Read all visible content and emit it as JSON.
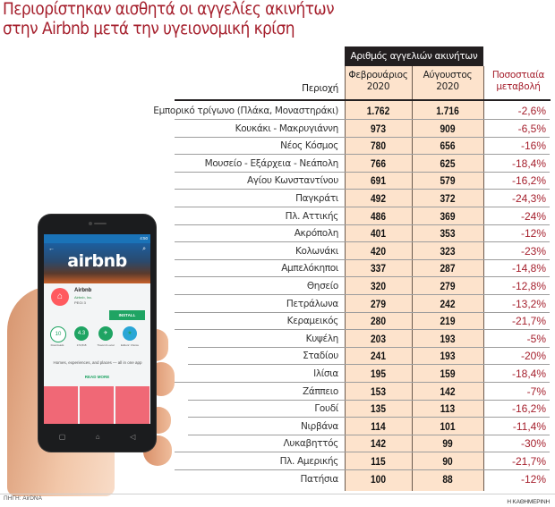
{
  "title": {
    "line1": "Περιορίστηκαν αισθητά οι αγγελίες ακινήτων",
    "line2": "στην Airbnb μετά την υγειονομική κρίση"
  },
  "table": {
    "group_header": "Αριθμός αγγελιών ακινήτων",
    "col_region": "Περιοχή",
    "col_feb": {
      "line1": "Φεβρουάριος",
      "line2": "2020"
    },
    "col_aug": {
      "line1": "Αύγουστος",
      "line2": "2020"
    },
    "col_pct": {
      "line1": "Ποσοστιαία",
      "line2": "μεταβολή"
    },
    "rows": [
      {
        "region": "Εμπορικό τρίγωνο (Πλάκα, Μοναστηράκι)",
        "feb": "1.762",
        "aug": "1.716",
        "pct": "-2,6%"
      },
      {
        "region": "Κουκάκι - Μακρυγιάννη",
        "feb": "973",
        "aug": "909",
        "pct": "-6,5%"
      },
      {
        "region": "Νέος Κόσμος",
        "feb": "780",
        "aug": "656",
        "pct": "-16%"
      },
      {
        "region": "Μουσείο - Εξάρχεια - Νεάπολη",
        "feb": "766",
        "aug": "625",
        "pct": "-18,4%"
      },
      {
        "region": "Αγίου Κωνσταντίνου",
        "feb": "691",
        "aug": "579",
        "pct": "-16,2%"
      },
      {
        "region": "Παγκράτι",
        "feb": "492",
        "aug": "372",
        "pct": "-24,3%"
      },
      {
        "region": "Πλ. Αττικής",
        "feb": "486",
        "aug": "369",
        "pct": "-24%"
      },
      {
        "region": "Ακρόπολη",
        "feb": "401",
        "aug": "353",
        "pct": "-12%"
      },
      {
        "region": "Κολωνάκι",
        "feb": "420",
        "aug": "323",
        "pct": "-23%"
      },
      {
        "region": "Αμπελόκηποι",
        "feb": "337",
        "aug": "287",
        "pct": "-14,8%"
      },
      {
        "region": "Θησείο",
        "feb": "320",
        "aug": "279",
        "pct": "-12,8%"
      },
      {
        "region": "Πετράλωνα",
        "feb": "279",
        "aug": "242",
        "pct": "-13,2%"
      },
      {
        "region": "Κεραμεικός",
        "feb": "280",
        "aug": "219",
        "pct": "-21,7%"
      },
      {
        "region": "Κυψέλη",
        "feb": "203",
        "aug": "193",
        "pct": "-5%"
      },
      {
        "region": "Σταδίου",
        "feb": "241",
        "aug": "193",
        "pct": "-20%"
      },
      {
        "region": "Ιλίσια",
        "feb": "195",
        "aug": "159",
        "pct": "-18,4%"
      },
      {
        "region": "Ζάππειο",
        "feb": "153",
        "aug": "142",
        "pct": "-7%"
      },
      {
        "region": "Γουδί",
        "feb": "135",
        "aug": "113",
        "pct": "-16,2%"
      },
      {
        "region": "Νιρβάνα",
        "feb": "114",
        "aug": "101",
        "pct": "-11,4%"
      },
      {
        "region": "Λυκαβηττός",
        "feb": "142",
        "aug": "99",
        "pct": "-30%"
      },
      {
        "region": "Πλ. Αμερικής",
        "feb": "115",
        "aug": "90",
        "pct": "-21,7%"
      },
      {
        "region": "Πατήσια",
        "feb": "100",
        "aug": "88",
        "pct": "-12%"
      }
    ]
  },
  "phone": {
    "status_time": "4:50",
    "hero_logo": "airbnb",
    "app_name": "Airbnb",
    "app_developer": "Airbnb, Inc.",
    "app_rating_label": "PEGI 3",
    "install_label": "INSTALL",
    "badges": [
      {
        "value": "10",
        "label": "Downloads"
      },
      {
        "value": "4.3",
        "label": "172,818"
      },
      {
        "value": "✈",
        "label": "Travel & Local"
      },
      {
        "value": "★",
        "label": "Editors' Choice"
      }
    ],
    "description": "Homes, experiences, and places — all in one app",
    "read_more": "READ MORE"
  },
  "footer": {
    "source": "ΠΗΓΗ: AirDNA",
    "brand": "Η ΚΑΘΗΜΕΡΙΝΗ"
  },
  "colors": {
    "title_red": "#a51f2c",
    "header_dark": "#231f20",
    "cell_peach": "#fde3cc",
    "pct_red": "#a51f2c",
    "airbnb_pink": "#ff5a5f",
    "install_green": "#1fa463"
  },
  "chart_data": {
    "type": "table",
    "title": "Περιορίστηκαν αισθητά οι αγγελίες ακινήτων στην Airbnb μετά την υγειονομική κρίση",
    "columns": [
      "Περιοχή",
      "Φεβρουάριος 2020",
      "Αύγουστος 2020",
      "Ποσοστιαία μεταβολή"
    ],
    "group_header": "Αριθμός αγγελιών ακινήτων",
    "categories": [
      "Εμπορικό τρίγωνο (Πλάκα, Μοναστηράκι)",
      "Κουκάκι - Μακρυγιάννη",
      "Νέος Κόσμος",
      "Μουσείο - Εξάρχεια - Νεάπολη",
      "Αγίου Κωνσταντίνου",
      "Παγκράτι",
      "Πλ. Αττικής",
      "Ακρόπολη",
      "Κολωνάκι",
      "Αμπελόκηποι",
      "Θησείο",
      "Πετράλωνα",
      "Κεραμεικός",
      "Κυψέλη",
      "Σταδίου",
      "Ιλίσια",
      "Ζάππειο",
      "Γουδί",
      "Νιρβάνα",
      "Λυκαβηττός",
      "Πλ. Αμερικής",
      "Πατήσια"
    ],
    "series": [
      {
        "name": "Φεβρουάριος 2020",
        "values": [
          1762,
          973,
          780,
          766,
          691,
          492,
          486,
          401,
          420,
          337,
          320,
          279,
          280,
          203,
          241,
          195,
          153,
          135,
          114,
          142,
          115,
          100
        ]
      },
      {
        "name": "Αύγουστος 2020",
        "values": [
          1716,
          909,
          656,
          625,
          579,
          372,
          369,
          353,
          323,
          287,
          279,
          242,
          219,
          193,
          193,
          159,
          142,
          113,
          101,
          99,
          90,
          88
        ]
      },
      {
        "name": "Ποσοστιαία μεταβολή (%)",
        "values": [
          -2.6,
          -6.5,
          -16,
          -18.4,
          -16.2,
          -24.3,
          -24,
          -12,
          -23,
          -14.8,
          -12.8,
          -13.2,
          -21.7,
          -5,
          -20,
          -18.4,
          -7,
          -16.2,
          -11.4,
          -30,
          -21.7,
          -12
        ]
      }
    ],
    "source": "ΠΗΓΗ: AirDNA"
  }
}
